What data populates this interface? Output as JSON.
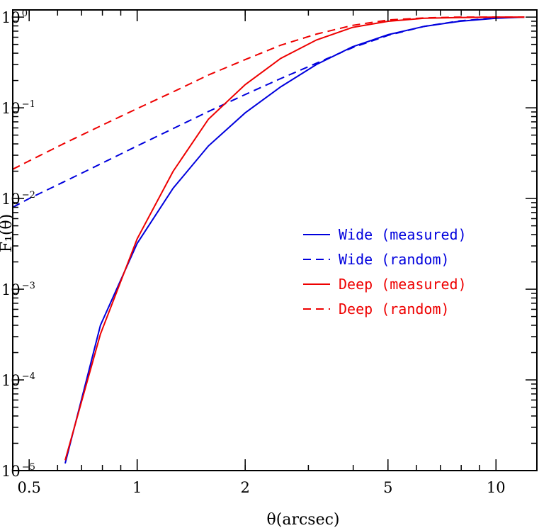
{
  "chart_data": {
    "type": "line",
    "title": "",
    "xlabel": "θ(arcsec)",
    "ylabel": "F₁(θ)",
    "xscale": "log",
    "yscale": "log",
    "xlim": [
      0.45,
      13
    ],
    "ylim": [
      1e-05,
      1.2
    ],
    "grid": false,
    "legend_position": "center-right",
    "x_ticks": [
      {
        "value": 0.5,
        "label": "0.5"
      },
      {
        "value": 1,
        "label": "1"
      },
      {
        "value": 2,
        "label": "2"
      },
      {
        "value": 5,
        "label": "5"
      },
      {
        "value": 10,
        "label": "10"
      }
    ],
    "y_ticks": [
      {
        "value": 1,
        "base": "10",
        "exp": "0"
      },
      {
        "value": 0.1,
        "base": "10",
        "exp": "−1"
      },
      {
        "value": 0.01,
        "base": "10",
        "exp": "−2"
      },
      {
        "value": 0.001,
        "base": "10",
        "exp": "−3"
      },
      {
        "value": 0.0001,
        "base": "10",
        "exp": "−4"
      },
      {
        "value": 1e-05,
        "base": "10",
        "exp": "−5"
      }
    ],
    "series": [
      {
        "name": "Wide (measured)",
        "color": "#0000dd",
        "dash": "solid",
        "x": [
          0.63,
          0.79,
          1.0,
          1.26,
          1.58,
          2.0,
          2.51,
          3.16,
          3.98,
          5.01,
          6.31,
          7.94,
          10.0,
          12.0
        ],
        "y": [
          1.2e-05,
          0.0004,
          0.0032,
          0.013,
          0.038,
          0.088,
          0.17,
          0.3,
          0.47,
          0.64,
          0.79,
          0.9,
          0.97,
          1.0
        ]
      },
      {
        "name": "Wide (random)",
        "color": "#0000dd",
        "dash": "dashed",
        "x": [
          0.45,
          0.5,
          0.63,
          0.79,
          1.0,
          1.26,
          1.58,
          2.0,
          2.51,
          3.16,
          3.98,
          5.01,
          6.31,
          7.94,
          10.0,
          12.0
        ],
        "y": [
          0.008,
          0.01,
          0.0155,
          0.024,
          0.038,
          0.059,
          0.091,
          0.14,
          0.21,
          0.31,
          0.46,
          0.63,
          0.79,
          0.91,
          0.98,
          1.0
        ]
      },
      {
        "name": "Deep (measured)",
        "color": "#ee0000",
        "dash": "solid",
        "x": [
          0.63,
          0.79,
          1.0,
          1.26,
          1.58,
          2.0,
          2.51,
          3.16,
          3.98,
          5.01,
          6.31,
          7.94,
          10.0,
          12.0
        ],
        "y": [
          1.3e-05,
          0.00032,
          0.0036,
          0.02,
          0.075,
          0.18,
          0.35,
          0.56,
          0.77,
          0.9,
          0.97,
          0.99,
          1.0,
          1.0
        ]
      },
      {
        "name": "Deep (random)",
        "color": "#ee0000",
        "dash": "dashed",
        "x": [
          0.45,
          0.5,
          0.63,
          0.79,
          1.0,
          1.26,
          1.58,
          2.0,
          2.51,
          3.16,
          3.98,
          5.01,
          6.31,
          7.94,
          10.0,
          12.0
        ],
        "y": [
          0.021,
          0.026,
          0.041,
          0.063,
          0.098,
          0.15,
          0.23,
          0.34,
          0.49,
          0.65,
          0.81,
          0.93,
          0.98,
          1.0,
          1.0,
          1.0
        ]
      }
    ]
  }
}
